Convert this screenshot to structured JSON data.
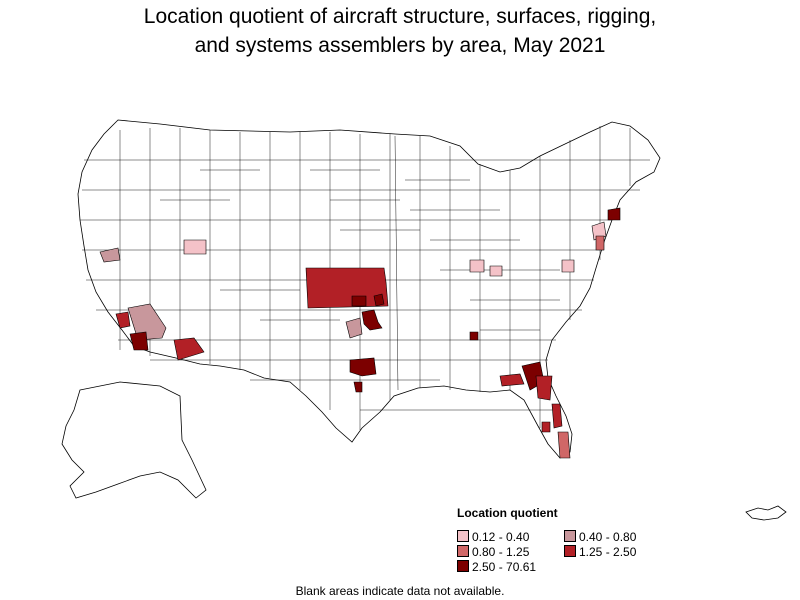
{
  "title": {
    "line1": "Location quotient of aircraft structure, surfaces, rigging,",
    "line2": "and systems assemblers by area, May 2021"
  },
  "colors": {
    "no_data": "#ffffff",
    "border": "#000000",
    "class_1": "#f4c2c8",
    "class_2": "#c8979c",
    "class_3": "#d06767",
    "class_4": "#b22026",
    "class_5": "#7c0000"
  },
  "legend": {
    "title": "Location quotient",
    "items": [
      {
        "label": "0.12 - 0.40",
        "color": "#f4c2c8"
      },
      {
        "label": "0.40 - 0.80",
        "color": "#c8979c"
      },
      {
        "label": "0.80 - 1.25",
        "color": "#d06767"
      },
      {
        "label": "1.25 - 2.50",
        "color": "#b22026"
      },
      {
        "label": "2.50 - 70.61",
        "color": "#7c0000"
      }
    ]
  },
  "footnote": "Blank areas indicate data not available."
}
